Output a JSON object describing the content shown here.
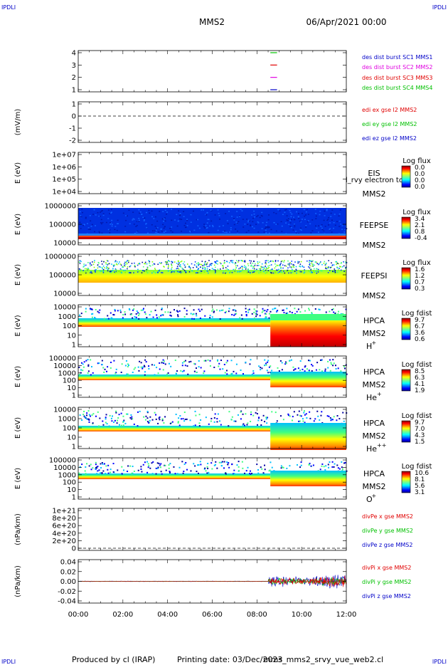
{
  "header": {
    "corner_tl": "IPDLI",
    "corner_tr": "IPDLI",
    "spacecraft": "MMS2",
    "date": "06/Apr/2021 00:00"
  },
  "footer": {
    "produced_by": "Produced by cl (IRAP)",
    "printing_date": "Printing date: 03/Dec/2023",
    "script": "mms_mms2_srvy_vue_web2.cl",
    "corner_bl": "IPDLI",
    "corner_br": "IPDLI"
  },
  "colors": {
    "mms1": "#000000",
    "red": "#e00000",
    "green": "#00c000",
    "blue": "#0000c8",
    "magenta": "#e000e0"
  },
  "chart_data": {
    "type": "multi-panel time series",
    "xaxis": {
      "ticks": [
        "00:00",
        "02:00",
        "04:00",
        "06:00",
        "08:00",
        "10:00",
        "12:00"
      ],
      "range_hours": [
        0,
        12
      ]
    },
    "panels": [
      {
        "id": "burst",
        "type": "line",
        "yticks": [
          "4",
          "3",
          "2",
          "1"
        ],
        "legend": [
          {
            "text": "des dist burst SC1 MMS1",
            "color": "#0000c8"
          },
          {
            "text": "des dist burst SC2 MMS2",
            "color": "#e000e0"
          },
          {
            "text": "des dist burst SC3 MMS3",
            "color": "#e00000"
          },
          {
            "text": "des dist burst SC4 MMS4",
            "color": "#00c000"
          }
        ],
        "series": [
          {
            "level": 4,
            "start_h": 8.6,
            "end_h": 8.9,
            "color": "#00c000"
          },
          {
            "level": 3,
            "start_h": 8.6,
            "end_h": 8.9,
            "color": "#e00000"
          },
          {
            "level": 2,
            "start_h": 8.6,
            "end_h": 8.9,
            "color": "#e000e0"
          },
          {
            "level": 1,
            "start_h": 8.6,
            "end_h": 8.9,
            "color": "#0000c8"
          }
        ]
      },
      {
        "id": "edi",
        "type": "line",
        "ylabel": "(mV/m)",
        "yticks": [
          "1",
          "0",
          "-1",
          "-2"
        ],
        "legend": [
          {
            "text": "edi ex gse l2 MMS2",
            "color": "#e00000"
          },
          {
            "text": "edi ey gse l2 MMS2",
            "color": "#00c000"
          },
          {
            "text": "edi ez gse l2 MMS2",
            "color": "#0000c8"
          }
        ]
      },
      {
        "id": "eis",
        "type": "heatmap",
        "ylabel": "E (eV)",
        "yticks": [
          "1e+07",
          "1e+06",
          "1e+05",
          "1e+04"
        ],
        "label": [
          "EIS",
          "MMS2"
        ],
        "extra_label": "l_rvy electron to",
        "colorbar": {
          "title": "Log flux",
          "ticks": [
            "0.0",
            "0.0",
            "0.0",
            "0.0"
          ]
        }
      },
      {
        "id": "feepse",
        "type": "heatmap",
        "ylabel": "E (eV)",
        "yticks": [
          "1000000",
          "100000",
          "10000"
        ],
        "label": [
          "FEEPSE",
          "MMS2"
        ],
        "colorbar": {
          "title": "Log flux",
          "ticks": [
            "3.4",
            "2.1",
            "0.8",
            "-0.4"
          ]
        }
      },
      {
        "id": "feepsi",
        "type": "heatmap",
        "ylabel": "E (eV)",
        "yticks": [
          "1000000",
          "100000",
          "10000"
        ],
        "label": [
          "FEEPSI",
          "MMS2"
        ],
        "colorbar": {
          "title": "Log flux",
          "ticks": [
            "1.6",
            "1.2",
            "0.7",
            "0.3"
          ]
        }
      },
      {
        "id": "hpca_h",
        "type": "heatmap",
        "ylabel": "E (eV)",
        "yticks": [
          "10000",
          "1000",
          "100",
          "10",
          "1"
        ],
        "label": [
          "HPCA",
          "MMS2"
        ],
        "species": "H",
        "species_sup": "+",
        "colorbar": {
          "title": "Log fdist",
          "ticks": [
            "9.7",
            "6.7",
            "3.6",
            "0.6"
          ]
        }
      },
      {
        "id": "hpca_he",
        "type": "heatmap",
        "ylabel": "E (eV)",
        "yticks": [
          "100000",
          "10000",
          "1000",
          "100",
          "10",
          "1"
        ],
        "label": [
          "HPCA",
          "MMS2"
        ],
        "species": "He",
        "species_sup": "+",
        "colorbar": {
          "title": "Log fdist",
          "ticks": [
            "8.5",
            "6.3",
            "4.1",
            "1.9"
          ]
        }
      },
      {
        "id": "hpca_he2",
        "type": "heatmap",
        "ylabel": "E (eV)",
        "yticks": [
          "10000",
          "1000",
          "100",
          "10",
          "1"
        ],
        "label": [
          "HPCA",
          "MMS2"
        ],
        "species": "He",
        "species_sup": "++",
        "colorbar": {
          "title": "Log fdist",
          "ticks": [
            "9.7",
            "7.0",
            "4.3",
            "1.5"
          ]
        }
      },
      {
        "id": "hpca_o",
        "type": "heatmap",
        "ylabel": "E (eV)",
        "yticks": [
          "100000",
          "10000",
          "1000",
          "100",
          "10",
          "1"
        ],
        "label": [
          "HPCA",
          "MMS2"
        ],
        "species": "O",
        "species_sup": "+",
        "colorbar": {
          "title": "Log fdist",
          "ticks": [
            "10.6",
            "8.1",
            "5.6",
            "3.1"
          ]
        }
      },
      {
        "id": "divpe",
        "type": "line",
        "ylabel": "(nPa/km)",
        "yticks": [
          "1e+21",
          "8e+20",
          "6e+20",
          "4e+20",
          "2e+20",
          "0"
        ],
        "legend": [
          {
            "text": "divPe x gse MMS2",
            "color": "#e00000"
          },
          {
            "text": "divPe y gse MMS2",
            "color": "#00c000"
          },
          {
            "text": "divPe z gse MMS2",
            "color": "#0000c8"
          }
        ]
      },
      {
        "id": "divpi",
        "type": "line",
        "ylabel": "(nPa/km)",
        "yticks": [
          "0.04",
          "0.02",
          "0.00",
          "-0.02",
          "-0.04"
        ],
        "legend": [
          {
            "text": "divPi x gse MMS2",
            "color": "#e00000"
          },
          {
            "text": "divPi y gse MMS2",
            "color": "#00c000"
          },
          {
            "text": "divPi z gse MMS2",
            "color": "#0000c8"
          }
        ]
      }
    ]
  }
}
